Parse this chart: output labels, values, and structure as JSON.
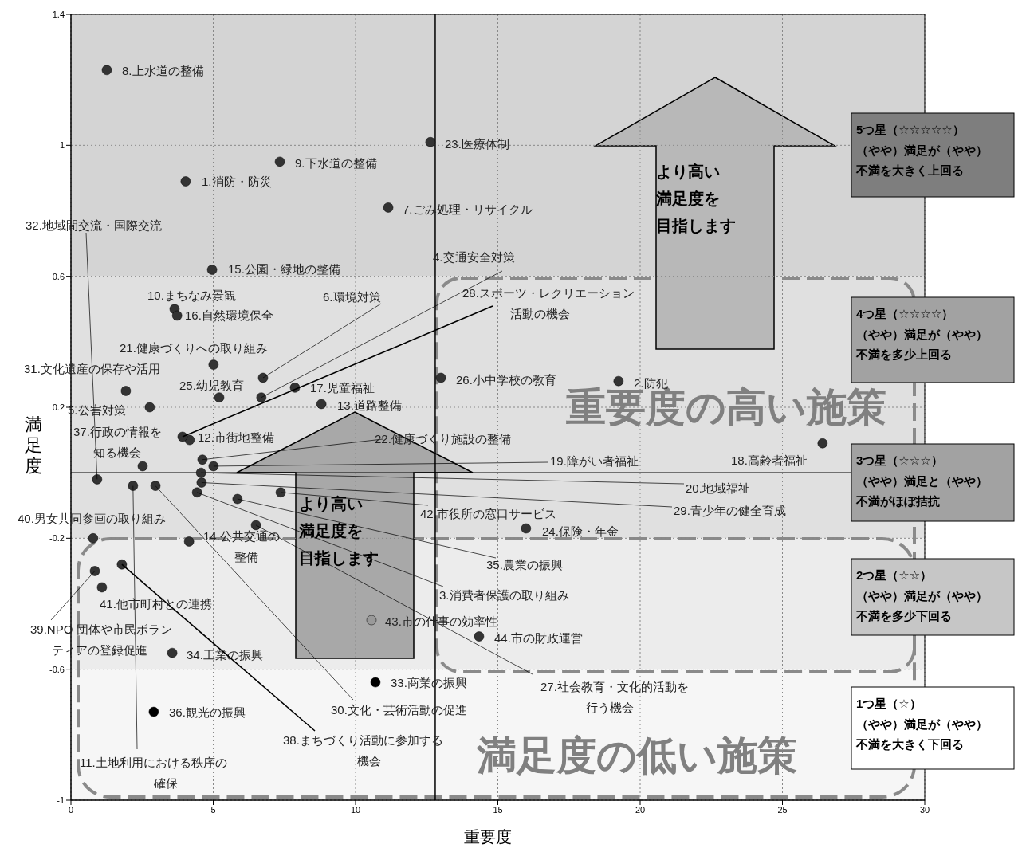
{
  "chart_data": {
    "type": "scatter",
    "xlabel": "重要度",
    "ylabel": "満足度",
    "x": [
      4.03,
      19.24,
      4.43,
      6.69,
      2.77,
      6.75,
      11.15,
      1.26,
      7.34,
      3.64,
      2.18,
      4.17,
      8.8,
      4.15,
      4.96,
      3.73,
      7.87,
      26.41,
      5.01,
      4.57,
      5.01,
      4.62,
      12.63,
      15.99,
      5.21,
      13.0,
      6.5,
      3.92,
      4.59,
      2.97,
      1.93,
      0.92,
      10.7,
      3.56,
      5.85,
      2.91,
      2.52,
      1.79,
      0.84,
      0.78,
      1.09,
      7.37,
      10.56,
      14.34
    ],
    "values": [
      0.89,
      0.28,
      -0.06,
      0.23,
      0.2,
      0.29,
      0.81,
      1.23,
      0.95,
      0.5,
      -0.04,
      0.1,
      0.21,
      -0.21,
      0.62,
      0.48,
      0.26,
      0.09,
      0.02,
      0.0,
      0.33,
      0.04,
      1.01,
      -0.17,
      0.23,
      0.29,
      -0.16,
      0.11,
      -0.03,
      -0.04,
      0.25,
      -0.02,
      -0.64,
      -0.55,
      -0.08,
      -0.73,
      0.02,
      -0.28,
      -0.3,
      -0.2,
      -0.35,
      -0.06,
      -0.45,
      -0.5
    ],
    "colors": [
      "#333333",
      "#333333",
      "#333333",
      "#333333",
      "#333333",
      "#333333",
      "#333333",
      "#333333",
      "#333333",
      "#333333",
      "#333333",
      "#333333",
      "#333333",
      "#333333",
      "#333333",
      "#333333",
      "#333333",
      "#333333",
      "#333333",
      "#333333",
      "#333333",
      "#333333",
      "#333333",
      "#333333",
      "#333333",
      "#333333",
      "#333333",
      "#333333",
      "#333333",
      "#333333",
      "#333333",
      "#333333",
      "#000000",
      "#333333",
      "#333333",
      "#000000",
      "#333333",
      "#333333",
      "#333333",
      "#333333",
      "#333333",
      "#333333",
      "#999999",
      "#333333"
    ],
    "marker": "circle",
    "xlim": [
      0,
      30
    ],
    "xticks": [
      0,
      5,
      10,
      15,
      20,
      25,
      30
    ],
    "ylim": [
      -1,
      1.4
    ],
    "yticks": [
      -1,
      -0.6,
      -0.2,
      0.2,
      0.6,
      1,
      1.4
    ],
    "grid": true,
    "ref_lines": [
      {
        "axis": "x",
        "value": 12.8
      },
      {
        "axis": "y",
        "value": 0
      }
    ],
    "bands": [
      {
        "axis": "y",
        "from": 0.6,
        "to": 1.4,
        "label": "5つ星（☆☆☆☆☆）（やや）満足が（やや）不満を大きく上回る",
        "color": "#d4d4d4"
      },
      {
        "axis": "y",
        "from": 0.2,
        "to": 0.6,
        "label": "4つ星（☆☆☆☆）（やや）満足が（やや）不満を多少上回る",
        "color": "#e0e0e0"
      },
      {
        "axis": "y",
        "from": -0.2,
        "to": 0.2,
        "label": "3つ星（☆☆☆）（やや）満足と（やや）不満がほぼ拮抗",
        "color": "#e0e0e0"
      },
      {
        "axis": "y",
        "from": -0.6,
        "to": -0.2,
        "label": "2つ星（☆☆）（やや）満足が（やや）不満を多少下回る",
        "color": "#ececec"
      },
      {
        "axis": "y",
        "from": -1,
        "to": -0.6,
        "label": "1つ星（☆）（やや）満足が（やや）不満を大きく下回る",
        "color": "#f6f6f6"
      }
    ],
    "annotations": [
      {
        "text": "1.消防・防災",
        "x": 4.03,
        "y": 0.89
      },
      {
        "text": "2.防犯",
        "x": 19.24,
        "y": 0.28
      },
      {
        "text": "3.消費者保護の取り組み",
        "x": 4.43,
        "y": -0.06
      },
      {
        "text": "4.交通安全対策",
        "x": 6.69,
        "y": 0.23
      },
      {
        "text": "5.公害対策",
        "x": 2.77,
        "y": 0.2
      },
      {
        "text": "6.環境対策",
        "x": 6.75,
        "y": 0.29
      },
      {
        "text": "7.ごみ処理・リサイクル",
        "x": 11.15,
        "y": 0.81
      },
      {
        "text": "8.上水道の整備",
        "x": 1.26,
        "y": 1.23
      },
      {
        "text": "9.下水道の整備",
        "x": 7.34,
        "y": 0.95
      },
      {
        "text": "10.まちなみ景観",
        "x": 3.64,
        "y": 0.5
      },
      {
        "text": "11.土地利用における秩序の確保",
        "x": 2.18,
        "y": -0.04
      },
      {
        "text": "12.市街地整備",
        "x": 4.17,
        "y": 0.1
      },
      {
        "text": "13.道路整備",
        "x": 8.8,
        "y": 0.21
      },
      {
        "text": "14.公共交通の整備",
        "x": 4.15,
        "y": -0.21
      },
      {
        "text": "15.公園・緑地の整備",
        "x": 4.96,
        "y": 0.62
      },
      {
        "text": "16.自然環境保全",
        "x": 3.73,
        "y": 0.48
      },
      {
        "text": "17.児童福祉",
        "x": 7.87,
        "y": 0.26
      },
      {
        "text": "18.高齢者福祉",
        "x": 26.41,
        "y": 0.09
      },
      {
        "text": "19.障がい者福祉",
        "x": 5.01,
        "y": 0.02
      },
      {
        "text": "20.地域福祉",
        "x": 4.57,
        "y": 0.0
      },
      {
        "text": "21.健康づくりへの取り組み",
        "x": 5.01,
        "y": 0.33
      },
      {
        "text": "22.健康づくり施設の整備",
        "x": 4.62,
        "y": 0.04
      },
      {
        "text": "23.医療体制",
        "x": 12.63,
        "y": 1.01
      },
      {
        "text": "24.保険・年金",
        "x": 15.99,
        "y": -0.17
      },
      {
        "text": "25.幼児教育",
        "x": 5.21,
        "y": 0.23
      },
      {
        "text": "26.小中学校の教育",
        "x": 13.0,
        "y": 0.29
      },
      {
        "text": "27.社会教育・文化的活動を行う機会",
        "x": 6.5,
        "y": -0.16
      },
      {
        "text": "28.スポーツ・レクリエーション活動の機会",
        "x": 3.92,
        "y": 0.11
      },
      {
        "text": "29.青少年の健全育成",
        "x": 4.59,
        "y": -0.03
      },
      {
        "text": "30.文化・芸術活動の促進",
        "x": 2.97,
        "y": -0.04
      },
      {
        "text": "31.文化遺産の保存や活用",
        "x": 1.93,
        "y": 0.25
      },
      {
        "text": "32.地域間交流・国際交流",
        "x": 0.92,
        "y": -0.02
      },
      {
        "text": "33.商業の振興",
        "x": 10.7,
        "y": -0.64
      },
      {
        "text": "34.工業の振興",
        "x": 3.56,
        "y": -0.55
      },
      {
        "text": "35.農業の振興",
        "x": 5.85,
        "y": -0.08
      },
      {
        "text": "36.観光の振興",
        "x": 2.91,
        "y": -0.73
      },
      {
        "text": "37.行政の情報を知る機会",
        "x": 2.52,
        "y": 0.02
      },
      {
        "text": "38.まちづくり活動に参加する機会",
        "x": 1.79,
        "y": -0.28
      },
      {
        "text": "39.NPO 団体や市民ボランティアの登録促進",
        "x": 0.84,
        "y": -0.3
      },
      {
        "text": "40.男女共同参画の取り組み",
        "x": 0.78,
        "y": -0.2
      },
      {
        "text": "41.他市町村との連携",
        "x": 1.09,
        "y": -0.35
      },
      {
        "text": "42.市役所の窓口サービス",
        "x": 7.37,
        "y": -0.06
      },
      {
        "text": "43.市の仕事の効率性",
        "x": 10.56,
        "y": -0.45
      },
      {
        "text": "44.市の財政運営",
        "x": 14.34,
        "y": -0.5
      },
      "重要度の高い施策",
      "満足度の低い施策",
      "より高い満足度を目指します",
      "より高い満足度を目指します"
    ]
  }
}
